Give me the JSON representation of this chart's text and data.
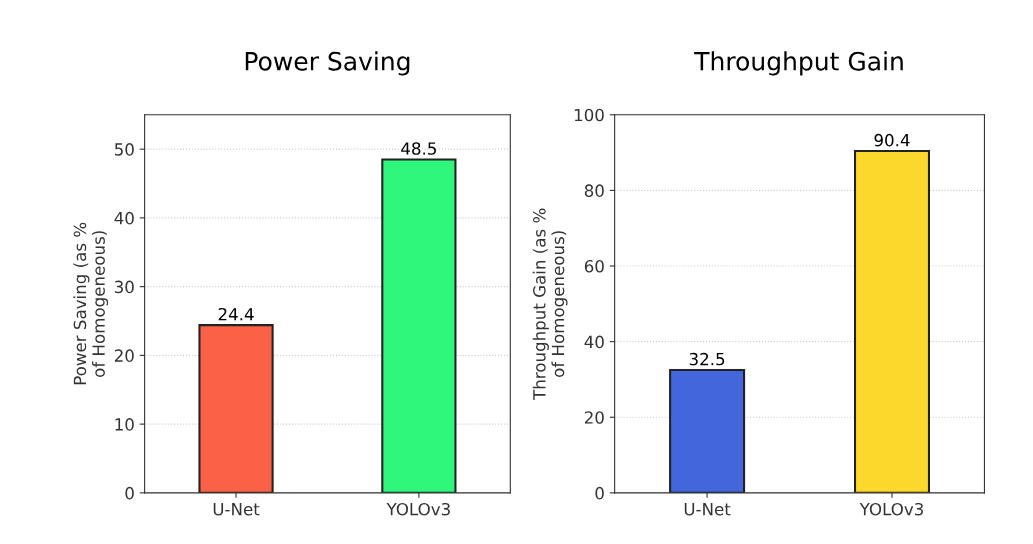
{
  "chart_data": [
    {
      "type": "bar",
      "title": "Power Saving",
      "ylabel": "Power Saving (as %\nof Homogeneous)",
      "categories": [
        "U-Net",
        "YOLOv3"
      ],
      "values": [
        24.4,
        48.5
      ],
      "colors": [
        "#fa6147",
        "#2ef77c"
      ],
      "ylim": [
        0,
        55
      ],
      "yticks": [
        0,
        10,
        20,
        30,
        40,
        50
      ],
      "grid": "y",
      "data_labels": true
    },
    {
      "type": "bar",
      "title": "Throughput Gain",
      "ylabel": "Throughput Gain (as %\nof Homogeneous)",
      "categories": [
        "U-Net",
        "YOLOv3"
      ],
      "values": [
        32.5,
        90.4
      ],
      "colors": [
        "#4366dd",
        "#fbd82b"
      ],
      "ylim": [
        0,
        100
      ],
      "yticks": [
        0,
        20,
        40,
        60,
        80,
        100
      ],
      "grid": "y",
      "data_labels": true
    }
  ]
}
